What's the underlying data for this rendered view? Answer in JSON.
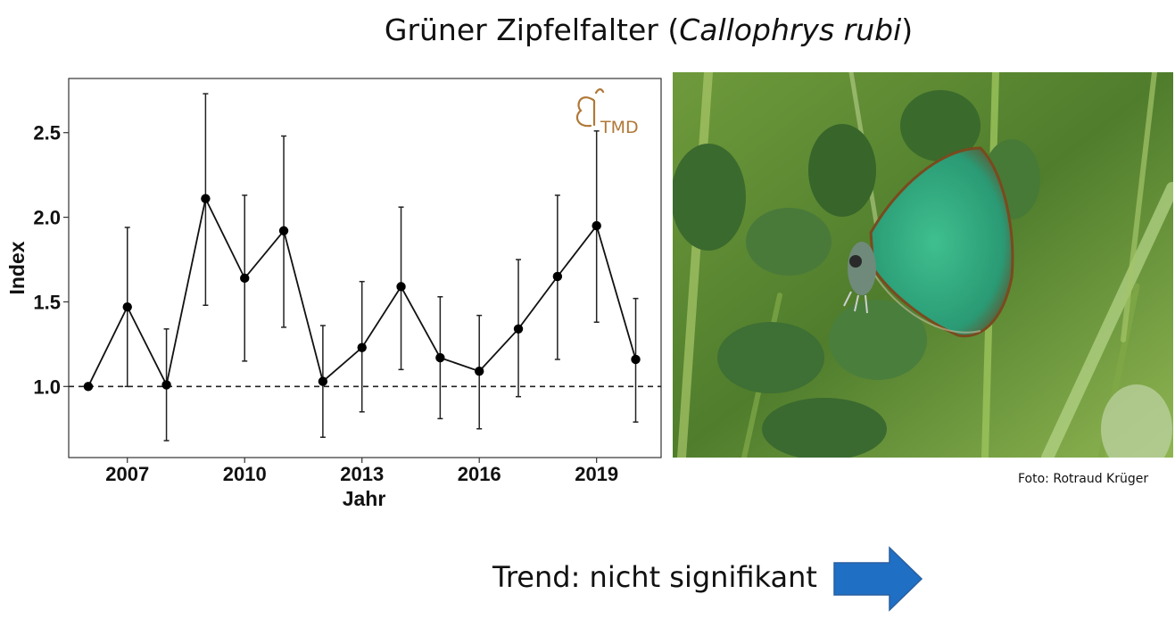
{
  "title": {
    "prefix": "Grüner Zipfelfalter (",
    "species": "Callophrys rubi",
    "suffix": ")"
  },
  "chart_data": {
    "type": "line",
    "xlabel": "Jahr",
    "ylabel": "Index",
    "xlim": [
      2005.5,
      2020.65
    ],
    "ylim": [
      0.58,
      2.82
    ],
    "x_ticks": [
      2007,
      2010,
      2013,
      2016,
      2019
    ],
    "y_ticks": [
      1.0,
      1.5,
      2.0,
      2.5
    ],
    "y_tick_labels": [
      "1.0",
      "1.5",
      "2.0",
      "2.5"
    ],
    "reference_line": 1.0,
    "grid": false,
    "logo_text": "TMD",
    "points": [
      {
        "x": 2006,
        "y": 1.0,
        "lo": 1.0,
        "hi": 1.0
      },
      {
        "x": 2007,
        "y": 1.47,
        "lo": 1.0,
        "hi": 1.94
      },
      {
        "x": 2008,
        "y": 1.01,
        "lo": 0.68,
        "hi": 1.34
      },
      {
        "x": 2009,
        "y": 2.11,
        "lo": 1.48,
        "hi": 2.73
      },
      {
        "x": 2010,
        "y": 1.64,
        "lo": 1.15,
        "hi": 2.13
      },
      {
        "x": 2011,
        "y": 1.92,
        "lo": 1.35,
        "hi": 2.48
      },
      {
        "x": 2012,
        "y": 1.03,
        "lo": 0.7,
        "hi": 1.36
      },
      {
        "x": 2013,
        "y": 1.23,
        "lo": 0.85,
        "hi": 1.62
      },
      {
        "x": 2014,
        "y": 1.59,
        "lo": 1.1,
        "hi": 2.06
      },
      {
        "x": 2015,
        "y": 1.17,
        "lo": 0.81,
        "hi": 1.53
      },
      {
        "x": 2016,
        "y": 1.09,
        "lo": 0.75,
        "hi": 1.42
      },
      {
        "x": 2017,
        "y": 1.34,
        "lo": 0.94,
        "hi": 1.75
      },
      {
        "x": 2018,
        "y": 1.65,
        "lo": 1.16,
        "hi": 2.13
      },
      {
        "x": 2019,
        "y": 1.95,
        "lo": 1.38,
        "hi": 2.51
      },
      {
        "x": 2020,
        "y": 1.16,
        "lo": 0.79,
        "hi": 1.52
      }
    ]
  },
  "photo": {
    "subject": "green hairstreak butterfly on leaves",
    "credit": "Foto: Rotraud Krüger"
  },
  "trend": {
    "text": "Trend: nicht signifikant",
    "arrow_color": "#1f6fc5"
  }
}
